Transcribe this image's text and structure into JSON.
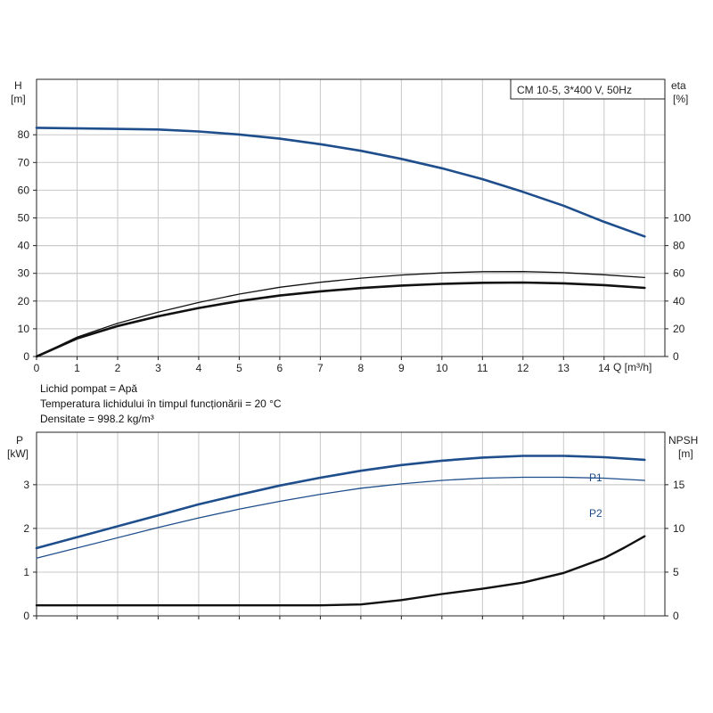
{
  "notes": [
    "Lichid pompat = Apă",
    "Temperatura lichidului în timpul funcționării = 20 °C",
    "Densitate = 998.2 kg/m³"
  ],
  "chart_data": [
    {
      "type": "line",
      "legend_title": "CM 10-5, 3*400 V, 50Hz",
      "legend_placement": "top-right",
      "grid": true,
      "x": {
        "label": "Q [m³/h]",
        "ticks": [
          0,
          1,
          2,
          3,
          4,
          5,
          6,
          7,
          8,
          9,
          10,
          11,
          12,
          13,
          14
        ],
        "range": [
          0,
          15.5
        ]
      },
      "y_left": {
        "label_top": "H",
        "label_unit": "[m]",
        "ticks": [
          0,
          10,
          20,
          30,
          40,
          50,
          60,
          70,
          80
        ],
        "range": [
          0,
          100
        ]
      },
      "y_right": {
        "label_top": "eta",
        "label_unit": "[%]",
        "ticks": [
          0,
          20,
          40,
          60,
          80,
          100
        ],
        "range": [
          0,
          200
        ]
      },
      "series": [
        {
          "axis": "left",
          "color": "#1f4e8c",
          "width": 2.6,
          "points": [
            [
              0,
              82.5
            ],
            [
              3,
              81.9
            ],
            [
              4,
              81.2
            ],
            [
              5,
              80.1
            ],
            [
              6,
              78.6
            ],
            [
              7,
              76.6
            ],
            [
              8,
              74.2
            ],
            [
              9,
              71.3
            ],
            [
              10,
              67.9
            ],
            [
              11,
              64
            ],
            [
              12,
              59.4
            ],
            [
              13,
              54.4
            ],
            [
              14,
              48.6
            ],
            [
              15,
              43.3
            ]
          ]
        },
        {
          "axis": "right",
          "color": "#111111",
          "width": 1.3,
          "points": [
            [
              0,
              0
            ],
            [
              1,
              14
            ],
            [
              2,
              24
            ],
            [
              3,
              32
            ],
            [
              4,
              39
            ],
            [
              5,
              45
            ],
            [
              6,
              50
            ],
            [
              7,
              53.6
            ],
            [
              8,
              56.5
            ],
            [
              9,
              58.8
            ],
            [
              10,
              60.3
            ],
            [
              11,
              61.2
            ],
            [
              12,
              61.3
            ],
            [
              13,
              60.5
            ],
            [
              14,
              59
            ],
            [
              15,
              57
            ]
          ]
        },
        {
          "axis": "right",
          "color": "#111111",
          "width": 2.6,
          "points": [
            [
              0,
              0
            ],
            [
              1,
              13
            ],
            [
              2,
              22
            ],
            [
              3,
              29
            ],
            [
              4,
              35
            ],
            [
              5,
              40
            ],
            [
              6,
              44
            ],
            [
              7,
              47
            ],
            [
              8,
              49.4
            ],
            [
              9,
              51.2
            ],
            [
              10,
              52.4
            ],
            [
              11,
              53.2
            ],
            [
              12,
              53.4
            ],
            [
              13,
              52.8
            ],
            [
              14,
              51.5
            ],
            [
              15,
              49.5
            ]
          ]
        }
      ]
    },
    {
      "type": "line",
      "grid": true,
      "x": {
        "ticks": [
          0,
          1,
          2,
          3,
          4,
          5,
          6,
          7,
          8,
          9,
          10,
          11,
          12,
          13,
          14
        ],
        "range": [
          0,
          15.5
        ]
      },
      "y_left": {
        "label_top": "P",
        "label_unit": "[kW]",
        "ticks": [
          0,
          1,
          2,
          3
        ],
        "range": [
          0,
          4.2
        ]
      },
      "y_right": {
        "label_top": "NPSH",
        "label_unit": "[m]",
        "ticks": [
          0,
          5,
          10,
          15
        ],
        "range": [
          0,
          21
        ]
      },
      "series": [
        {
          "name": "P1",
          "axis": "left",
          "color": "#1f4e8c",
          "width": 2.6,
          "points": [
            [
              0,
              1.55
            ],
            [
              3,
              2.3
            ],
            [
              4,
              2.55
            ],
            [
              5,
              2.77
            ],
            [
              6,
              2.98
            ],
            [
              7,
              3.16
            ],
            [
              8,
              3.32
            ],
            [
              9,
              3.45
            ],
            [
              10,
              3.55
            ],
            [
              11,
              3.62
            ],
            [
              12,
              3.66
            ],
            [
              13,
              3.66
            ],
            [
              14,
              3.63
            ],
            [
              15,
              3.57
            ]
          ]
        },
        {
          "name": "P2",
          "axis": "left",
          "color": "#1f4e8c",
          "width": 1.3,
          "points": [
            [
              0,
              1.32
            ],
            [
              3,
              2.02
            ],
            [
              4,
              2.24
            ],
            [
              5,
              2.44
            ],
            [
              6,
              2.62
            ],
            [
              7,
              2.78
            ],
            [
              8,
              2.92
            ],
            [
              9,
              3.02
            ],
            [
              10,
              3.1
            ],
            [
              11,
              3.15
            ],
            [
              12,
              3.17
            ],
            [
              13,
              3.17
            ],
            [
              14,
              3.15
            ],
            [
              15,
              3.1
            ]
          ]
        },
        {
          "name": "",
          "axis": "right",
          "color": "#111111",
          "width": 2.4,
          "points": [
            [
              0,
              1.2
            ],
            [
              3,
              1.2
            ],
            [
              5,
              1.2
            ],
            [
              7,
              1.2
            ],
            [
              8,
              1.3
            ],
            [
              9,
              1.8
            ],
            [
              10,
              2.5
            ],
            [
              11,
              3.1
            ],
            [
              12,
              3.8
            ],
            [
              13,
              4.9
            ],
            [
              14,
              6.6
            ],
            [
              14.5,
              7.8
            ],
            [
              15,
              9.1
            ]
          ]
        }
      ]
    }
  ]
}
